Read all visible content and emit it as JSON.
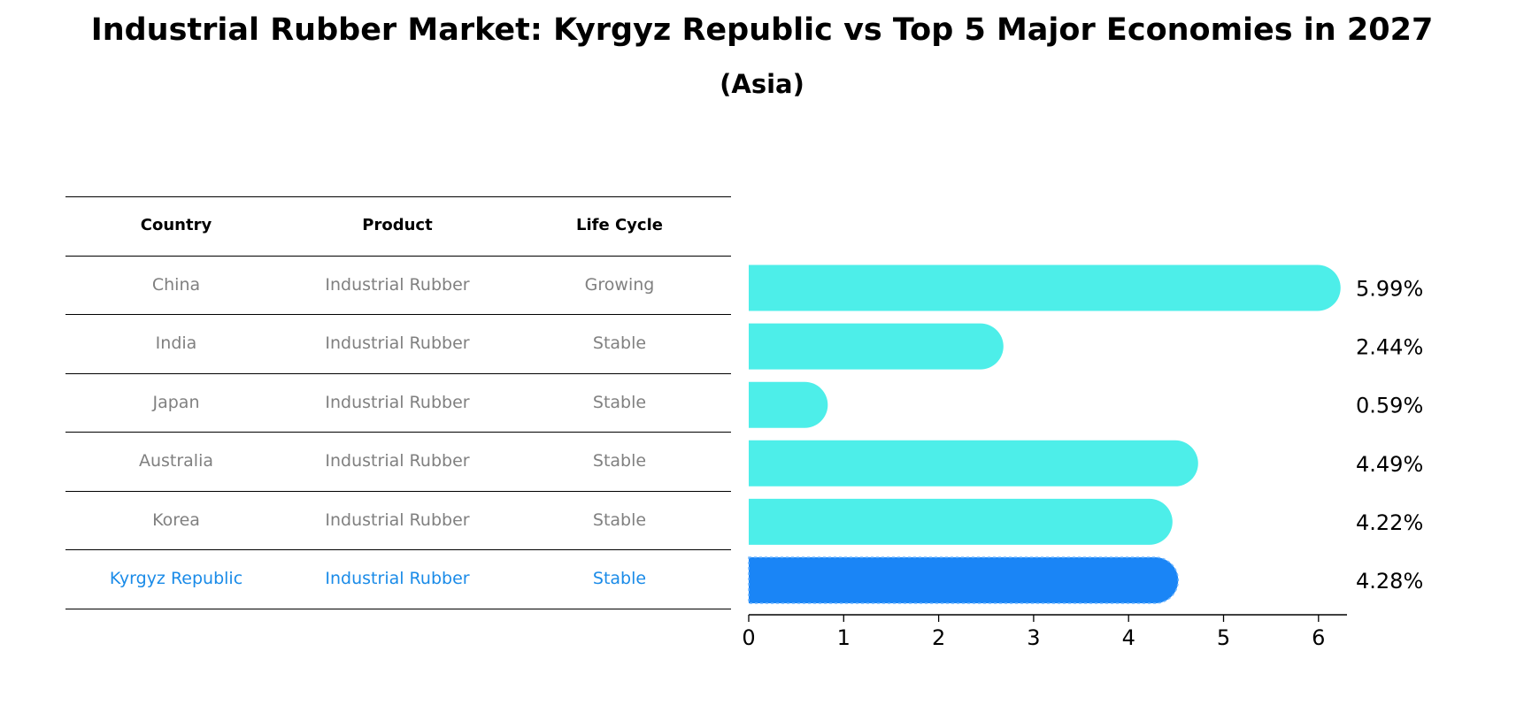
{
  "title": "Industrial Rubber Market: Kyrgyz Republic vs Top 5 Major Economies in 2027",
  "subtitle": "(Asia)",
  "table": {
    "headers": [
      "Country",
      "Product",
      "Life Cycle"
    ],
    "rows": [
      {
        "country": "China",
        "product": "Industrial Rubber",
        "life_cycle": "Growing",
        "highlight": false
      },
      {
        "country": "India",
        "product": "Industrial Rubber",
        "life_cycle": "Stable",
        "highlight": false
      },
      {
        "country": "Japan",
        "product": "Industrial Rubber",
        "life_cycle": "Stable",
        "highlight": false
      },
      {
        "country": "Australia",
        "product": "Industrial Rubber",
        "life_cycle": "Stable",
        "highlight": false
      },
      {
        "country": "Korea",
        "product": "Industrial Rubber",
        "life_cycle": "Stable",
        "highlight": false
      },
      {
        "country": "Kyrgyz Republic",
        "product": "Industrial Rubber",
        "life_cycle": "Stable",
        "highlight": true
      }
    ]
  },
  "colors": {
    "bar": "#4deee9",
    "highlight_bar": "#1a85f6",
    "muted_text": "#808080",
    "highlight_text": "#1a8be8"
  },
  "chart_data": {
    "type": "bar",
    "orientation": "horizontal",
    "categories": [
      "China",
      "India",
      "Japan",
      "Australia",
      "Korea",
      "Kyrgyz Republic"
    ],
    "values": [
      5.99,
      2.44,
      0.59,
      4.49,
      4.22,
      4.28
    ],
    "value_labels": [
      "5.99%",
      "2.44%",
      "0.59%",
      "4.49%",
      "4.22%",
      "4.28%"
    ],
    "highlight_index": 5,
    "xlim": [
      0,
      6.3
    ],
    "xticks": [
      0,
      1,
      2,
      3,
      4,
      5,
      6
    ],
    "xlabel": "",
    "ylabel": ""
  }
}
